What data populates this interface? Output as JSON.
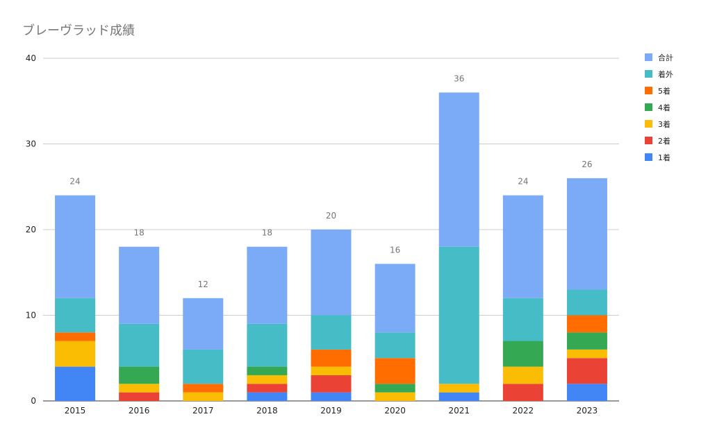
{
  "chart_data": {
    "type": "bar",
    "stacked": true,
    "title": "ブレーヴラッド成績",
    "categories": [
      "2015",
      "2016",
      "2017",
      "2018",
      "2019",
      "2020",
      "2021",
      "2022",
      "2023"
    ],
    "ylim": [
      0,
      40
    ],
    "yticks": [
      0,
      10,
      20,
      30,
      40
    ],
    "grid": true,
    "legend_position": "right",
    "series": [
      {
        "name": "1着",
        "color": "#4285f4",
        "values": [
          4,
          0,
          0,
          1,
          1,
          0,
          1,
          0,
          2
        ]
      },
      {
        "name": "2着",
        "color": "#ea4335",
        "values": [
          0,
          1,
          0,
          1,
          2,
          0,
          0,
          2,
          3
        ]
      },
      {
        "name": "3着",
        "color": "#fbbc04",
        "values": [
          3,
          1,
          1,
          1,
          1,
          1,
          1,
          2,
          1
        ]
      },
      {
        "name": "4着",
        "color": "#34a853",
        "values": [
          0,
          2,
          0,
          1,
          0,
          1,
          0,
          3,
          2
        ]
      },
      {
        "name": "5着",
        "color": "#ff6d01",
        "values": [
          1,
          0,
          1,
          0,
          2,
          3,
          0,
          0,
          2
        ]
      },
      {
        "name": "着外",
        "color": "#46bdc6",
        "values": [
          4,
          5,
          4,
          5,
          4,
          3,
          16,
          5,
          3
        ]
      },
      {
        "name": "合計",
        "color": "#7baaf7",
        "values": [
          12,
          9,
          6,
          9,
          10,
          8,
          18,
          12,
          13
        ]
      }
    ],
    "total_labels": [
      "24",
      "18",
      "12",
      "18",
      "20",
      "16",
      "36",
      "24",
      "26"
    ]
  }
}
